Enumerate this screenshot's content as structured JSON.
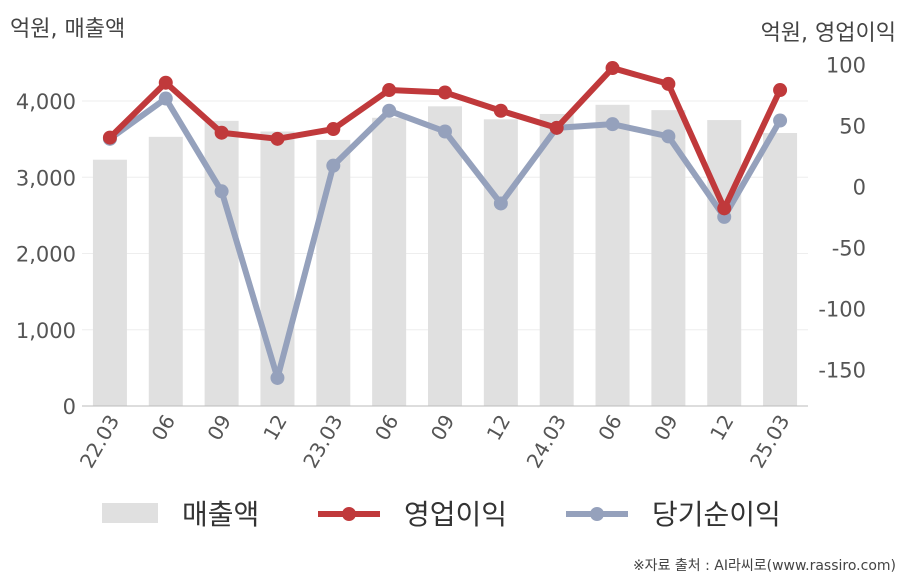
{
  "left_unit": "억원, 매출액",
  "right_unit": "억원, 영업이익",
  "source": "※자료 출처 : AI라씨로(www.rassiro.com)",
  "colors": {
    "bar": "#e0e0e0",
    "op": "#c0393b",
    "net": "#95a1bc"
  },
  "chart_data": {
    "type": "bar+line",
    "categories": [
      "22.03",
      "06",
      "09",
      "12",
      "23.03",
      "06",
      "09",
      "12",
      "24.03",
      "06",
      "09",
      "12",
      "25.03"
    ],
    "left_axis": {
      "range": [
        0,
        4800
      ],
      "ticks": [
        0,
        1000,
        2000,
        3000,
        4000
      ],
      "tick_labels": [
        "0",
        "1,000",
        "2,000",
        "3,000",
        "4,000"
      ]
    },
    "right_axis": {
      "range": [
        -180,
        120
      ],
      "ticks": [
        -150,
        -100,
        -50,
        0,
        50,
        100
      ],
      "tick_labels": [
        "-150",
        "-100",
        "-50",
        "0",
        "50",
        "100"
      ]
    },
    "series": [
      {
        "name": "매출액",
        "kind": "bar",
        "axis": "left",
        "values": [
          3230,
          3530,
          3740,
          3600,
          3490,
          3780,
          3930,
          3760,
          3830,
          3950,
          3880,
          3750,
          3580
        ]
      },
      {
        "name": "영업이익",
        "kind": "line",
        "axis": "right",
        "values": [
          40,
          85,
          44,
          39,
          47,
          79,
          77,
          62,
          48,
          97,
          84,
          -18,
          79
        ]
      },
      {
        "name": "당기순이익",
        "kind": "line",
        "axis": "right",
        "values": [
          39,
          72,
          -4,
          -157,
          17,
          62,
          45,
          -14,
          48,
          51,
          41,
          -25,
          54
        ]
      }
    ],
    "grid": true,
    "legend_position": "bottom"
  }
}
